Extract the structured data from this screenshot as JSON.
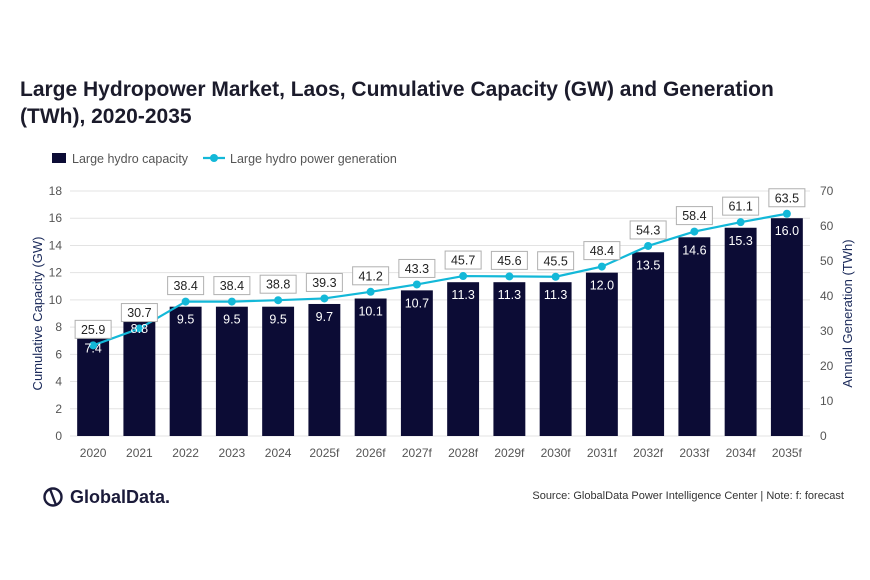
{
  "title": "Large Hydropower Market, Laos, Cumulative Capacity (GW) and Generation (TWh), 2020-2035",
  "source": "Source: GlobalData Power Intelligence Center | Note: f: forecast",
  "logo": {
    "text": "GlobalData.",
    "icon": "globaldata-logo-icon"
  },
  "colors": {
    "bar": "#0c0c35",
    "line": "#13b8d8",
    "grid": "#e3e3e3",
    "text": "#333333"
  },
  "chart_data": {
    "type": "bar",
    "categories": [
      "2020",
      "2021",
      "2022",
      "2023",
      "2024",
      "2025f",
      "2026f",
      "2027f",
      "2028f",
      "2029f",
      "2030f",
      "2031f",
      "2032f",
      "2033f",
      "2034f",
      "2035f"
    ],
    "series": [
      {
        "name": "Large hydro capacity",
        "type": "bar",
        "axis": "left",
        "values": [
          7.4,
          8.8,
          9.5,
          9.5,
          9.5,
          9.7,
          10.1,
          10.7,
          11.3,
          11.3,
          11.3,
          12.0,
          13.5,
          14.6,
          15.3,
          16.0
        ],
        "labels": [
          "7.4",
          "8.8",
          "9.5",
          "9.5",
          "9.5",
          "9.7",
          "10.1",
          "10.7",
          "11.3",
          "11.3",
          "11.3",
          "12.0",
          "13.5",
          "14.6",
          "15.3",
          "16.0"
        ]
      },
      {
        "name": "Large hydro power generation",
        "type": "line",
        "axis": "right",
        "values": [
          25.9,
          30.7,
          38.4,
          38.4,
          38.8,
          39.3,
          41.2,
          43.3,
          45.7,
          45.6,
          45.5,
          48.4,
          54.3,
          58.4,
          61.1,
          63.5
        ],
        "labels": [
          "25.9",
          "30.7",
          "38.4",
          "38.4",
          "38.8",
          "39.3",
          "41.2",
          "43.3",
          "45.7",
          "45.6",
          "45.5",
          "48.4",
          "54.3",
          "58.4",
          "61.1",
          "63.5"
        ]
      }
    ],
    "ylabel": "Cumulative Capacity (GW)",
    "ylabel_right": "Annual Generation (TWh)",
    "ylim": [
      0,
      18
    ],
    "ylim_right": [
      0,
      70
    ],
    "yticks": [
      "0",
      "2",
      "4",
      "6",
      "8",
      "10",
      "12",
      "14",
      "16",
      "18"
    ],
    "yticks_right": [
      "0",
      "10",
      "20",
      "30",
      "40",
      "50",
      "60",
      "70"
    ],
    "grid": true,
    "legend_position": "top-left"
  }
}
